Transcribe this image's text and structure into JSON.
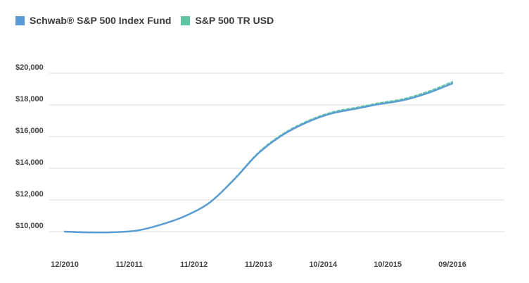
{
  "chart_data": {
    "type": "line",
    "title": "",
    "xlabel": "",
    "ylabel": "",
    "x_tick_labels": [
      "12/2010",
      "11/2011",
      "11/2012",
      "11/2013",
      "10/2014",
      "10/2015",
      "09/2016"
    ],
    "y_tick_labels": [
      "$10,000",
      "$12,000",
      "$14,000",
      "$16,000",
      "$18,000",
      "$20,000"
    ],
    "y_ticks": [
      10000,
      12000,
      14000,
      16000,
      18000,
      20000
    ],
    "ylim": [
      9000,
      20000
    ],
    "grid": true,
    "legend_position": "top-left",
    "series": [
      {
        "name": "Schwab® S&P 500 Index Fund",
        "color": "#5b9bd5",
        "style": "solid",
        "values": [
          10000,
          9950,
          9960,
          10070,
          10450,
          11000,
          11850,
          13300,
          14950,
          16100,
          16900,
          17450,
          17750,
          18050,
          18300,
          18750,
          19350
        ]
      },
      {
        "name": "S&P 500 TR USD",
        "color": "#5fc4a4",
        "style": "dashed",
        "values": [
          10000,
          9955,
          9965,
          10080,
          10460,
          11010,
          11870,
          13330,
          14990,
          16160,
          16960,
          17520,
          17820,
          18120,
          18380,
          18840,
          19450
        ]
      }
    ]
  }
}
